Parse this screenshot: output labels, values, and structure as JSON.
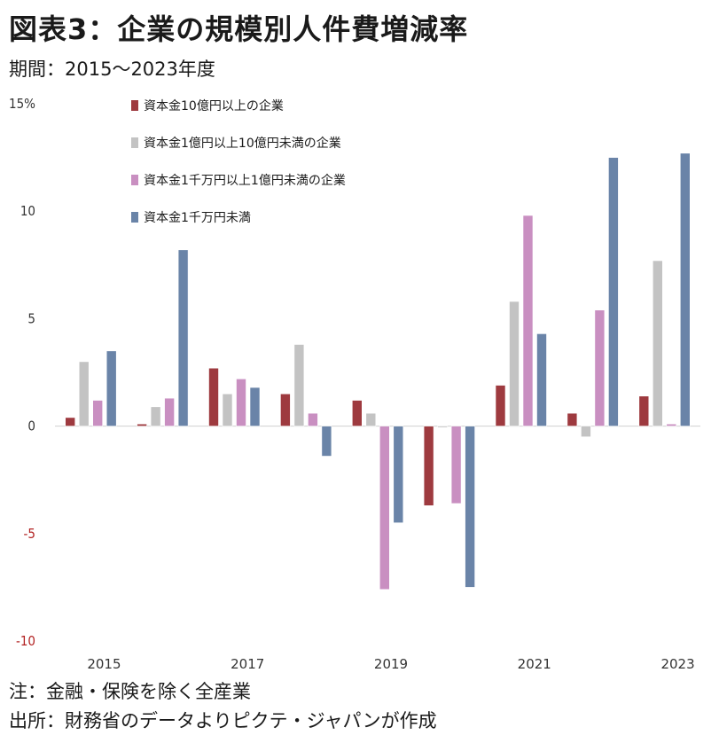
{
  "title": "図表3：企業の規模別人件費増減率",
  "subtitle": "期間：2015～2023年度",
  "notes": {
    "note": "注：金融・保険を除く全産業",
    "source": "出所：財務省のデータよりピクテ・ジャパンが作成"
  },
  "chart_data": {
    "type": "bar",
    "title": "",
    "xlabel": "",
    "ylabel": "",
    "ylim": [
      -10,
      15
    ],
    "y_ticks": [
      15,
      10,
      5,
      0,
      -5,
      -10
    ],
    "y_tick_labels": [
      "15%",
      "10",
      "5",
      "0",
      "-5",
      "-10"
    ],
    "negative_tick_color": "#b22222",
    "categories": [
      "2015",
      "2016",
      "2017",
      "2018",
      "2019",
      "2020",
      "2021",
      "2022",
      "2023"
    ],
    "x_tick_labels": [
      "2015",
      "",
      "2017",
      "",
      "2019",
      "",
      "2021",
      "",
      "2023"
    ],
    "legend_position": "top-left",
    "grid": false,
    "series": [
      {
        "name": "資本金10億円以上の企業",
        "color": "#9e3a3f",
        "values": [
          0.4,
          0.1,
          2.7,
          1.5,
          1.2,
          -3.7,
          1.9,
          0.6,
          1.4
        ]
      },
      {
        "name": "資本金1億円以上10億円未満の企業",
        "color": "#c3c3c3",
        "values": [
          3.0,
          0.9,
          1.5,
          3.8,
          0.6,
          0.0,
          5.8,
          -0.5,
          7.7
        ]
      },
      {
        "name": "資本金1千万円以上1億円未満の企業",
        "color": "#c98fc1",
        "values": [
          1.2,
          1.3,
          2.2,
          0.6,
          -7.6,
          -3.6,
          9.8,
          5.4,
          0.1
        ]
      },
      {
        "name": "資本金1千万円未満",
        "color": "#6a84a8",
        "values": [
          3.5,
          8.2,
          1.8,
          -1.4,
          -4.5,
          -7.5,
          4.3,
          12.5,
          12.7
        ]
      }
    ]
  }
}
